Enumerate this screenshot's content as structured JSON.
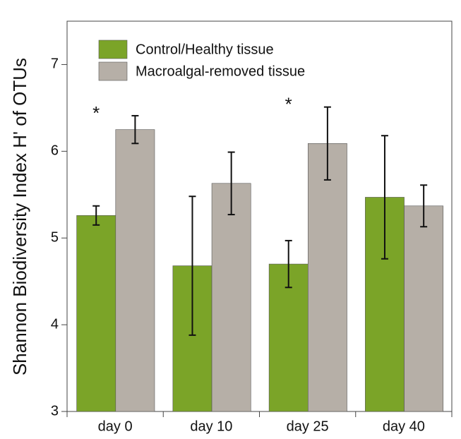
{
  "chart_data": {
    "type": "bar",
    "y_label": "Shannon Biodiversity Index H' of OTUs",
    "categories": [
      "day 0",
      "day 10",
      "day 25",
      "day 40"
    ],
    "series": [
      {
        "name": "Control/Healthy tissue",
        "color": "#7ba428",
        "values": [
          5.26,
          4.68,
          4.7,
          5.47
        ],
        "errors": [
          0.11,
          0.8,
          0.27,
          0.71
        ]
      },
      {
        "name": "Macroalgal-removed tissue",
        "color": "#b6afa7",
        "values": [
          6.25,
          5.63,
          6.09,
          5.37
        ],
        "errors": [
          0.16,
          0.36,
          0.42,
          0.24
        ]
      }
    ],
    "annotations": [
      {
        "text": "*",
        "category": "day 0"
      },
      {
        "text": "*",
        "category": "day 25"
      }
    ],
    "ylim": [
      3,
      7.5
    ],
    "yticks": [
      3,
      4,
      5,
      6,
      7
    ],
    "grid": false,
    "legend": "upper-left"
  }
}
